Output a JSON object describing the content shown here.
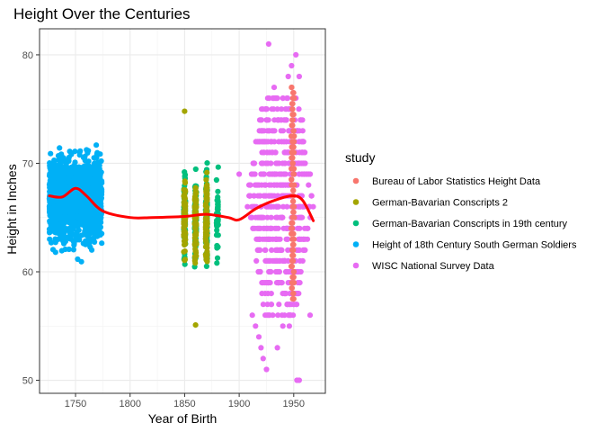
{
  "chart_data": {
    "type": "scatter",
    "title": "Height Over the Centuries",
    "xlabel": "Year of Birth",
    "ylabel": "Height in Inches",
    "xlim": [
      1717,
      1979
    ],
    "ylim": [
      48.8,
      82.4
    ],
    "x_ticks": [
      "1750",
      "1800",
      "1850",
      "1900",
      "1950"
    ],
    "y_ticks": [
      "50",
      "60",
      "70",
      "80"
    ],
    "grid": true,
    "legend": {
      "title": "study",
      "placement": "right"
    },
    "series": [
      {
        "name": "Bureau of Labor Statistics Height Data",
        "color": "#F8766D",
        "x_range": [
          1947.5,
          1950.5
        ],
        "y_range": [
          57.5,
          77
        ],
        "y_step": 0.5
      },
      {
        "name": "German-Bavarian Conscripts 2",
        "color": "#A3A500",
        "x_columns": [
          1850,
          1860,
          1870
        ],
        "y_range": [
          57,
          72
        ],
        "outliers": [
          [
            1850,
            74.8
          ],
          [
            1860,
            55.1
          ]
        ]
      },
      {
        "name": "German-Bavarian Conscripts in 19th century",
        "color": "#00BF7D",
        "x_columns": [
          1850,
          1860,
          1870,
          1880
        ],
        "y_range": [
          57.5,
          71.5
        ]
      },
      {
        "name": "Height of 18th Century South German Soldiers",
        "color": "#00B0F6",
        "x_range": [
          1726,
          1774
        ],
        "y_range": [
          57.5,
          74.5
        ]
      },
      {
        "name": "WISC National Survey Data",
        "color": "#E76BF3",
        "x_range": [
          1905,
          1970
        ],
        "y_range": [
          51,
          81
        ],
        "y_step": 1
      }
    ],
    "smooth_line": {
      "color": "#FF0000",
      "points": [
        [
          1726,
          67.0
        ],
        [
          1738,
          66.9
        ],
        [
          1750,
          67.7
        ],
        [
          1760,
          67.0
        ],
        [
          1775,
          65.6
        ],
        [
          1800,
          65.0
        ],
        [
          1820,
          65.0
        ],
        [
          1850,
          65.1
        ],
        [
          1870,
          65.3
        ],
        [
          1890,
          65.0
        ],
        [
          1900,
          64.8
        ],
        [
          1915,
          65.8
        ],
        [
          1930,
          66.5
        ],
        [
          1948,
          67.0
        ],
        [
          1958,
          66.6
        ],
        [
          1968,
          64.7
        ]
      ]
    }
  }
}
